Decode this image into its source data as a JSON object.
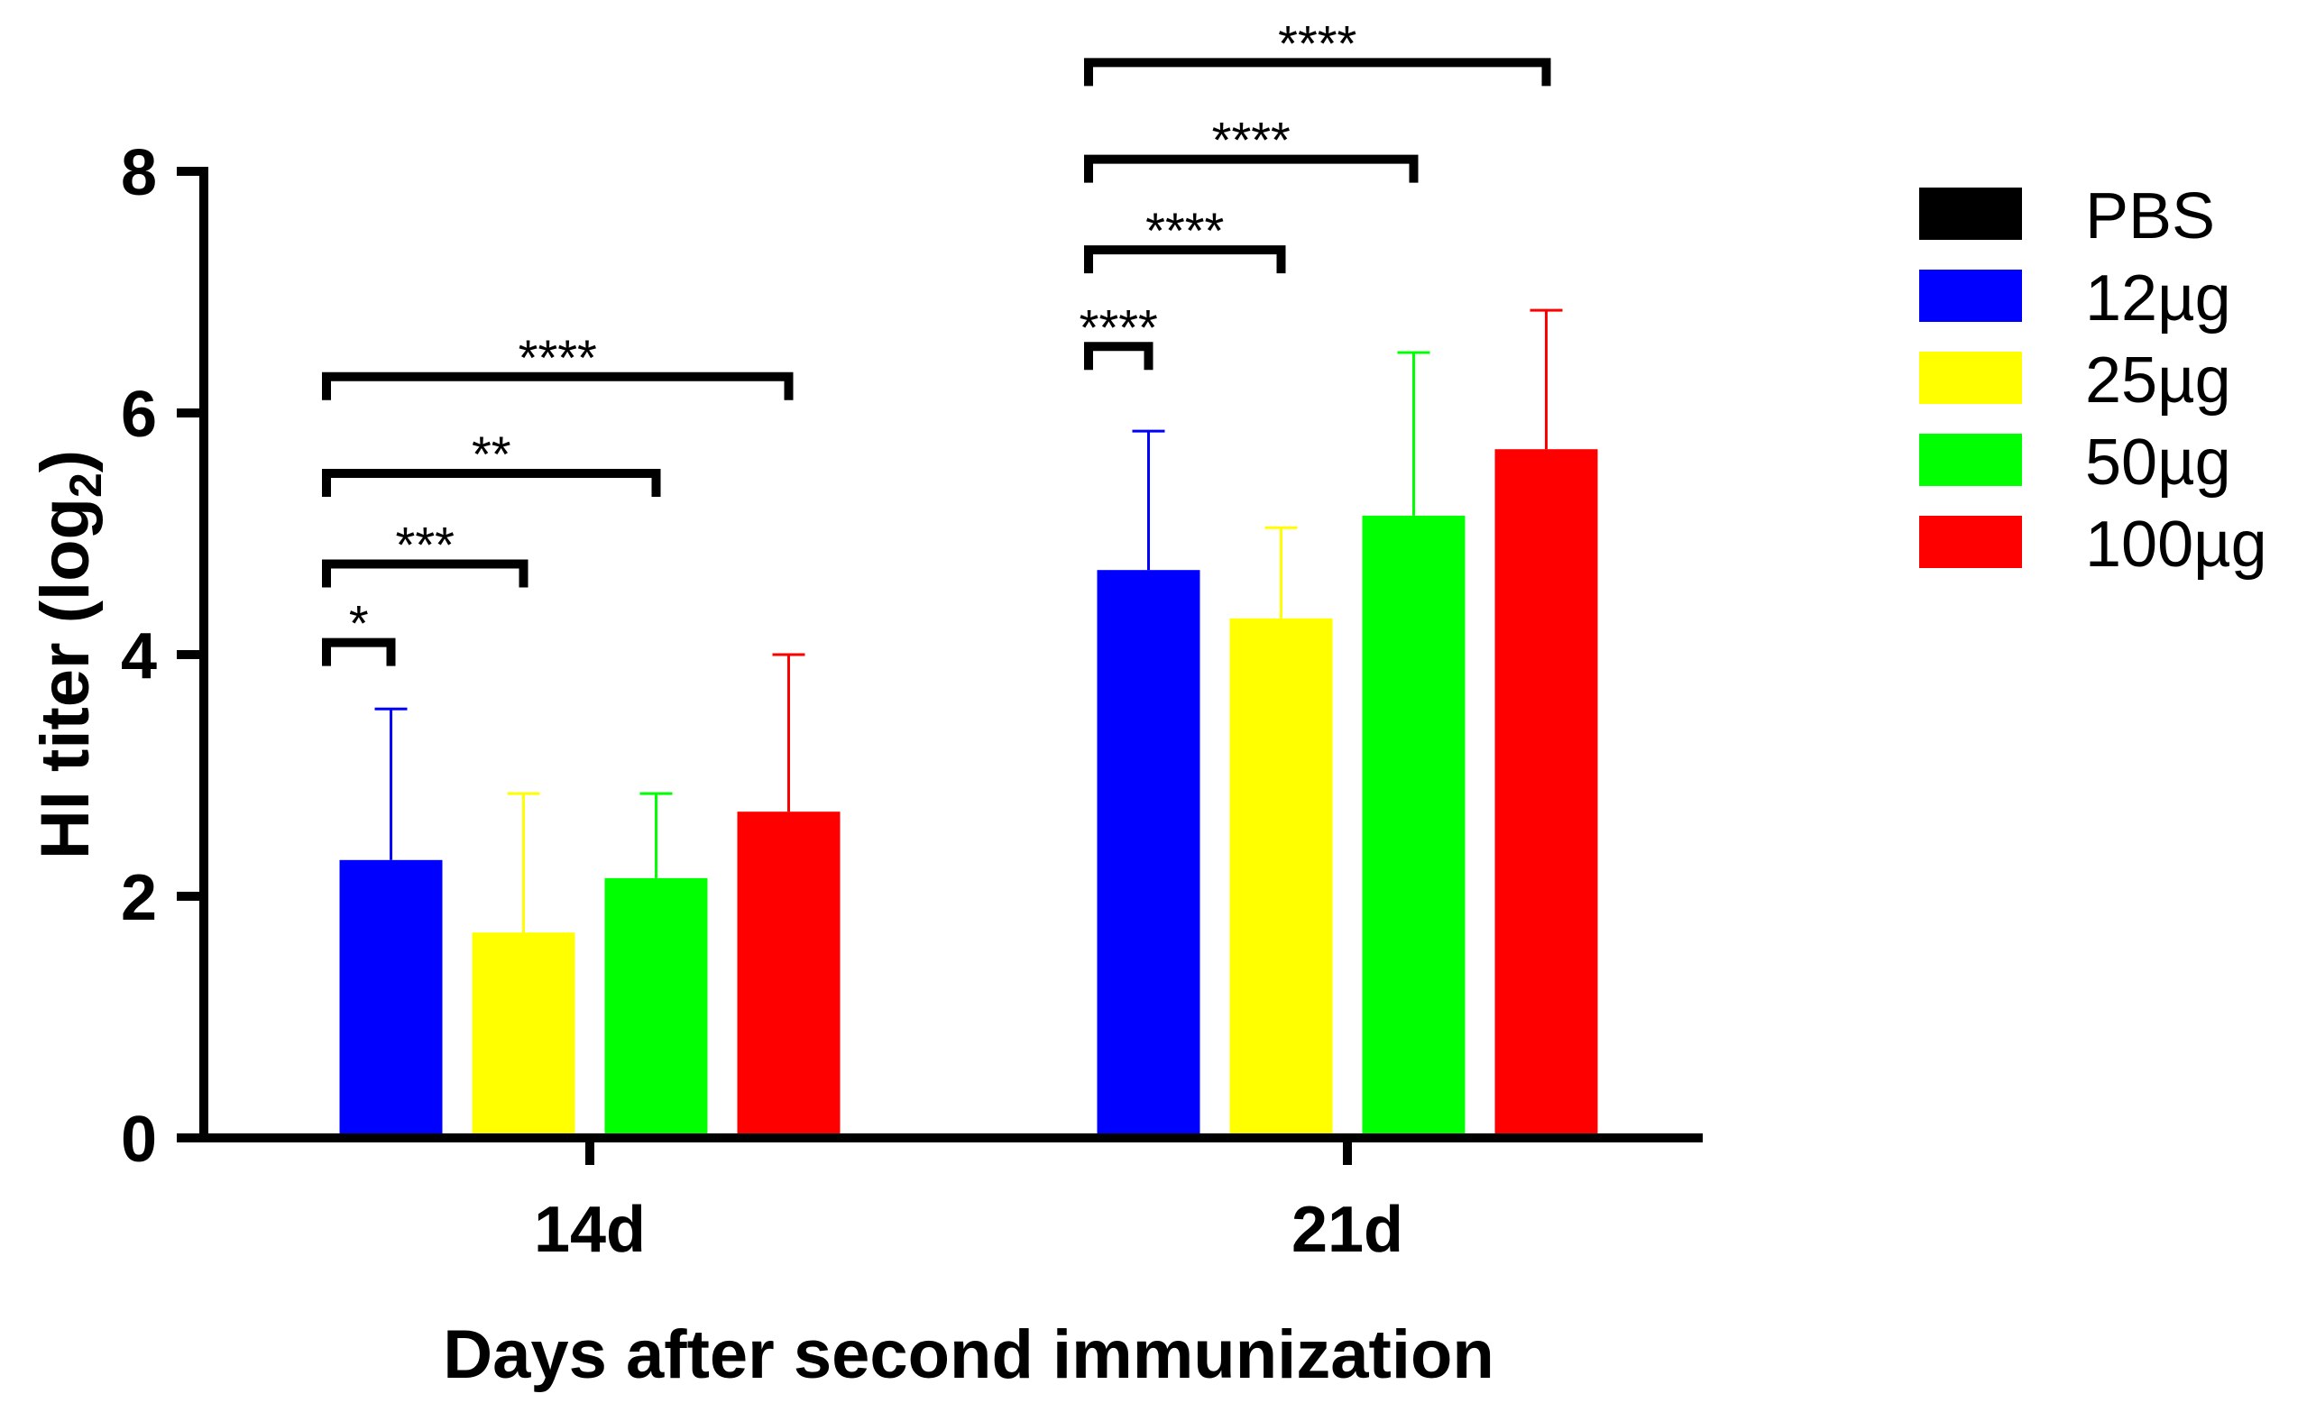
{
  "chart_data": {
    "type": "bar",
    "title": "",
    "xlabel": "Days after second immunization",
    "ylabel_main": "HI titer (log",
    "ylabel_sub": "2",
    "ylabel_close": ")",
    "ylim": [
      0,
      8
    ],
    "yticks": [
      0,
      2,
      4,
      6,
      8
    ],
    "ytick_labels": [
      "0",
      "2",
      "4",
      "6",
      "8"
    ],
    "categories": [
      "14d",
      "21d"
    ],
    "legend_position": "right",
    "series": [
      {
        "name": "PBS",
        "color": "#000000",
        "values": [
          0,
          0
        ],
        "errors": [
          0,
          0
        ]
      },
      {
        "name": "12µg",
        "color": "#0000ff",
        "values": [
          2.3,
          4.7
        ],
        "errors": [
          1.25,
          1.15
        ]
      },
      {
        "name": "25µg",
        "color": "#ffff00",
        "values": [
          1.7,
          4.3
        ],
        "errors": [
          1.15,
          0.75
        ]
      },
      {
        "name": "50µg",
        "color": "#00ff00",
        "values": [
          2.15,
          5.15
        ],
        "errors": [
          0.7,
          1.35
        ]
      },
      {
        "name": "100µg",
        "color": "#ff0000",
        "values": [
          2.7,
          5.7
        ],
        "errors": [
          1.3,
          1.15
        ]
      }
    ],
    "significance": [
      {
        "category": 0,
        "series": 1,
        "label": "*",
        "level": 4.1
      },
      {
        "category": 0,
        "series": 2,
        "label": "***",
        "level": 4.75
      },
      {
        "category": 0,
        "series": 3,
        "label": "**",
        "level": 5.5
      },
      {
        "category": 0,
        "series": 4,
        "label": "****",
        "level": 6.3
      },
      {
        "category": 1,
        "series": 1,
        "label": "****",
        "level": 6.55
      },
      {
        "category": 1,
        "series": 2,
        "label": "****",
        "level": 7.35
      },
      {
        "category": 1,
        "series": 3,
        "label": "****",
        "level": 8.1
      },
      {
        "category": 1,
        "series": 4,
        "label": "****",
        "level": 8.9
      }
    ]
  }
}
